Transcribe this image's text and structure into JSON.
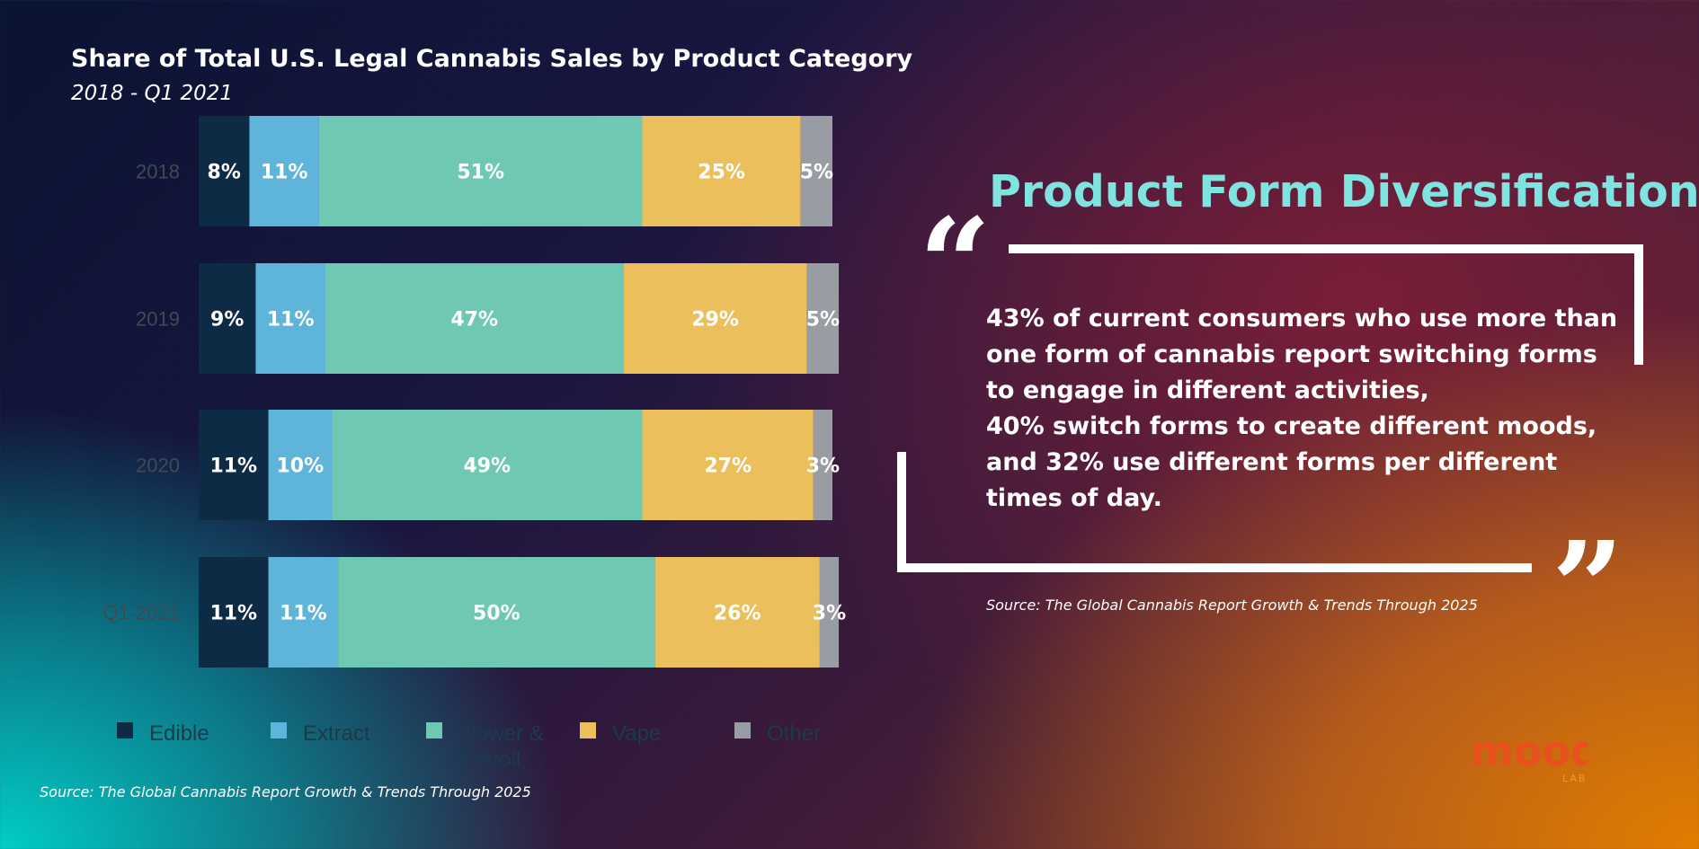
{
  "chart_data": {
    "type": "bar",
    "orientation": "horizontal",
    "stacked": true,
    "title": "Share of Total U.S. Legal Cannabis Sales by Product Category",
    "subtitle": "2018 - Q1 2021",
    "categories": [
      "2018",
      "2019",
      "2020",
      "Q1-2021"
    ],
    "series": [
      {
        "name": "Edible",
        "color": "#0d2b45",
        "values": [
          8,
          9,
          11,
          11
        ],
        "labels": [
          "8%",
          "9%",
          "11%",
          "11%"
        ]
      },
      {
        "name": "Extract",
        "color": "#5fb5d9",
        "values": [
          11,
          11,
          10,
          11
        ],
        "labels": [
          "11%",
          "11%",
          "10%",
          "11%"
        ]
      },
      {
        "name": "Flower & Preroll",
        "color": "#6fc8b3",
        "values": [
          51,
          47,
          49,
          50
        ],
        "labels": [
          "51%",
          "47%",
          "49%",
          "50%"
        ]
      },
      {
        "name": "Vape",
        "color": "#ebc05c",
        "values": [
          25,
          29,
          27,
          26
        ],
        "labels": [
          "25%",
          "29%",
          "27%",
          "26%"
        ]
      },
      {
        "name": "Other",
        "color": "#9a9ca3",
        "values": [
          5,
          5,
          3,
          3
        ],
        "labels": [
          "5%",
          "5%",
          "3%",
          "3%"
        ]
      }
    ],
    "xlim": [
      0,
      100
    ],
    "grid": false,
    "legend": "bottom"
  },
  "chart_source": "Source: The Global Cannabis Report Growth & Trends Through 2025",
  "callout": {
    "headline": "Product Form Diversification",
    "quote_lines": [
      "43% of current consumers who use more than",
      "one form of cannabis report switching forms",
      "to engage in different activities,",
      "40% switch forms to create different moods,",
      "and 32% use different forms per different",
      "times of day."
    ],
    "open_mark": "“",
    "close_mark": "”",
    "source": "Source: The Global Cannabis Report Growth & Trends Through 2025"
  },
  "logo": {
    "wordmark": "mood",
    "sub": "LAB",
    "colors": [
      "#e8501e",
      "#e7a21c",
      "#8cc63f",
      "#d1458f"
    ]
  }
}
